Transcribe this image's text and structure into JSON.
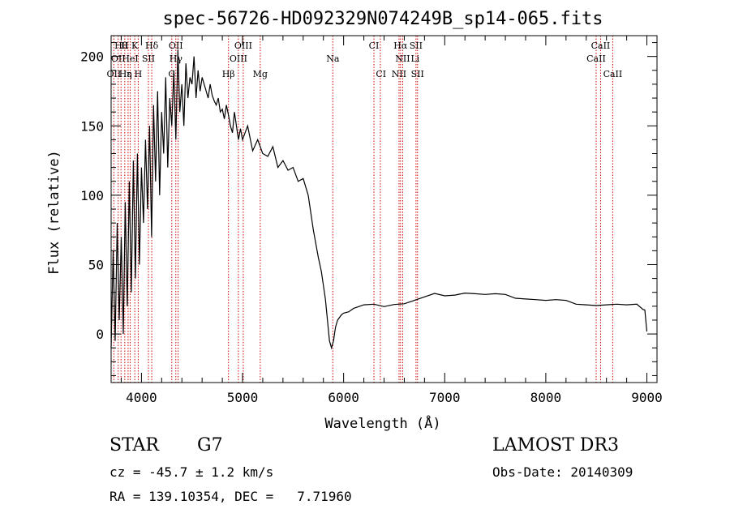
{
  "chart_data": {
    "type": "line",
    "title": "spec-56726-HD092329N074249B_sp14-065.fits",
    "xlabel": "Wavelength (Å)",
    "ylabel": "Flux (relative)",
    "xlim": [
      3700,
      9100
    ],
    "ylim": [
      -35,
      215
    ],
    "xticks": [
      4000,
      5000,
      6000,
      7000,
      8000,
      9000
    ],
    "yticks": [
      0,
      50,
      100,
      150,
      200
    ],
    "xtick_labels": [
      "4000",
      "5000",
      "6000",
      "7000",
      "8000",
      "9000"
    ],
    "ytick_labels": [
      "0",
      "50",
      "100",
      "150",
      "200"
    ],
    "grid": false,
    "series": [
      {
        "name": "flux",
        "x": [
          3700,
          3720,
          3740,
          3760,
          3780,
          3800,
          3820,
          3840,
          3860,
          3880,
          3900,
          3920,
          3940,
          3960,
          3980,
          4000,
          4020,
          4040,
          4060,
          4080,
          4100,
          4120,
          4140,
          4160,
          4180,
          4200,
          4220,
          4240,
          4260,
          4280,
          4300,
          4320,
          4340,
          4360,
          4380,
          4400,
          4420,
          4440,
          4460,
          4480,
          4500,
          4520,
          4540,
          4560,
          4580,
          4600,
          4620,
          4640,
          4660,
          4680,
          4700,
          4720,
          4740,
          4760,
          4780,
          4800,
          4820,
          4840,
          4860,
          4880,
          4900,
          4920,
          4940,
          4960,
          4980,
          5000,
          5050,
          5100,
          5150,
          5200,
          5250,
          5300,
          5350,
          5400,
          5450,
          5500,
          5550,
          5600,
          5650,
          5700,
          5750,
          5780,
          5800,
          5820,
          5840,
          5860,
          5880,
          5900,
          5910,
          5920,
          5940,
          5960,
          5980,
          6000,
          6050,
          6100,
          6200,
          6300,
          6400,
          6500,
          6600,
          6700,
          6800,
          6900,
          7000,
          7100,
          7200,
          7300,
          7400,
          7500,
          7600,
          7700,
          7800,
          7900,
          8000,
          8100,
          8200,
          8300,
          8400,
          8500,
          8600,
          8700,
          8800,
          8900,
          8960,
          8980,
          9000
        ],
        "y": [
          -10,
          60,
          -5,
          80,
          10,
          70,
          0,
          95,
          20,
          110,
          30,
          125,
          40,
          130,
          50,
          120,
          80,
          140,
          90,
          150,
          70,
          165,
          110,
          175,
          100,
          160,
          130,
          185,
          120,
          170,
          150,
          190,
          140,
          205,
          160,
          180,
          150,
          195,
          170,
          185,
          180,
          200,
          170,
          190,
          175,
          185,
          180,
          175,
          170,
          180,
          172,
          168,
          165,
          170,
          160,
          162,
          155,
          165,
          158,
          150,
          145,
          160,
          150,
          140,
          148,
          140,
          150,
          132,
          140,
          130,
          128,
          135,
          120,
          125,
          118,
          120,
          110,
          112,
          100,
          75,
          55,
          45,
          35,
          25,
          10,
          -5,
          -10,
          -5,
          0,
          5,
          10,
          12,
          14,
          15,
          16,
          18,
          20,
          20,
          21,
          22,
          22,
          24,
          26,
          28,
          29,
          29,
          30,
          29,
          28,
          28,
          27,
          27,
          26,
          25,
          24,
          24,
          23,
          23,
          22,
          21,
          21,
          21,
          20,
          20,
          19,
          18,
          2
        ]
      }
    ],
    "line_labels": [
      {
        "text": "Hθ",
        "x": 3798,
        "row": 0
      },
      {
        "text": "H",
        "x": 3835,
        "row": 0
      },
      {
        "text": "K",
        "x": 3934,
        "row": 0
      },
      {
        "text": "Hδ",
        "x": 4102,
        "row": 0
      },
      {
        "text": "OII",
        "x": 4340,
        "row": 0
      },
      {
        "text": "OIII",
        "x": 5007,
        "row": 0
      },
      {
        "text": "CI",
        "x": 6300,
        "row": 0
      },
      {
        "text": "Hα",
        "x": 6563,
        "row": 0
      },
      {
        "text": "SII",
        "x": 6716,
        "row": 0
      },
      {
        "text": "CaII",
        "x": 8542,
        "row": 0
      },
      {
        "text": "OII",
        "x": 3770,
        "row": 1
      },
      {
        "text": "HeI",
        "x": 3889,
        "row": 1
      },
      {
        "text": "SII",
        "x": 4069,
        "row": 1
      },
      {
        "text": "Hγ",
        "x": 4341,
        "row": 1
      },
      {
        "text": "OIII",
        "x": 4959,
        "row": 1
      },
      {
        "text": "Na",
        "x": 5893,
        "row": 1
      },
      {
        "text": "NII",
        "x": 6584,
        "row": 1
      },
      {
        "text": "Li",
        "x": 6708,
        "row": 1
      },
      {
        "text": "CaII",
        "x": 8498,
        "row": 1
      },
      {
        "text": "OII",
        "x": 3727,
        "row": 2
      },
      {
        "text": "Hε",
        "x": 3840,
        "row": 2
      },
      {
        "text": "η",
        "x": 3880,
        "row": 2
      },
      {
        "text": "H",
        "x": 3968,
        "row": 2
      },
      {
        "text": "G",
        "x": 4300,
        "row": 2
      },
      {
        "text": "Hβ",
        "x": 4861,
        "row": 2
      },
      {
        "text": "Mg",
        "x": 5175,
        "row": 2
      },
      {
        "text": "CI",
        "x": 6370,
        "row": 2
      },
      {
        "text": "NII",
        "x": 6548,
        "row": 2
      },
      {
        "text": "SII",
        "x": 6731,
        "row": 2
      },
      {
        "text": "CaII",
        "x": 8662,
        "row": 2
      }
    ],
    "line_markers": [
      3727,
      3770,
      3798,
      3835,
      3868,
      3889,
      3934,
      3968,
      4069,
      4102,
      4300,
      4340,
      4363,
      4861,
      4959,
      5007,
      5175,
      5893,
      6300,
      6363,
      6548,
      6563,
      6584,
      6716,
      6731,
      8498,
      8542,
      8662
    ]
  },
  "info": {
    "object_type": "STAR",
    "object_class": "G7",
    "survey": "LAMOST DR3",
    "cz": "cz = -45.7 ± 1.2 km/s",
    "obs_date": "Obs-Date: 20140309",
    "radec": "RA = 139.10354, DEC =   7.71960"
  },
  "colors": {
    "axis": "#000000",
    "spectrum": "#000000",
    "line_marker": "#cc0000"
  }
}
